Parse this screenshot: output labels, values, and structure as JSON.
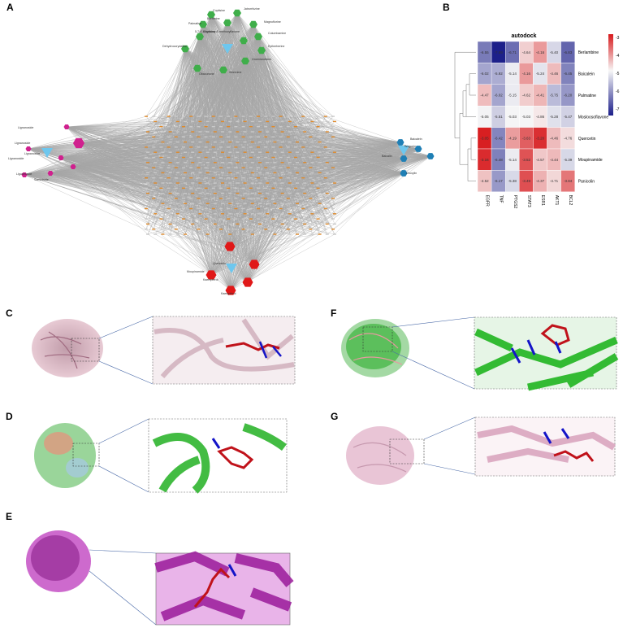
{
  "panels": {
    "A": "A",
    "B": "B",
    "C": "C",
    "D": "D",
    "E": "E",
    "F": "F",
    "G": "G"
  },
  "network": {
    "top_labels": [
      "Coptisine",
      "Jatrorrhizine",
      "Berberine",
      "Palmatine",
      "Magnoflorine",
      "Columbamine",
      "Epiberberine",
      "Groenlandicine",
      "Worenine",
      "Obacunone",
      "5,7,4'-trihydroxy-8-methoxyflavone",
      "Coptisine",
      "Dehydrocorydaline"
    ],
    "left_labels": [
      "Lignanoside",
      "Lignanoside",
      "Lignanoside",
      "Lignanoside",
      "Ligustroside",
      "Sammiside"
    ],
    "right_labels": [
      "Baicalein",
      "Wogonin",
      "Baicalin",
      "Oroxylin"
    ],
    "bottom_labels": [
      "Quercetin",
      "Kaempferol",
      "Kaempferol",
      "Moupinamide"
    ]
  },
  "chart_data": {
    "type": "heatmap",
    "title": "autodock",
    "columns": [
      "EGFR",
      "TNF",
      "PTGS2",
      "STAT3",
      "ESR1",
      "AKT1",
      "BCL2"
    ],
    "rows": [
      "Berlambine",
      "Baicalein",
      "Palmatine",
      "Mosloosoflavone",
      "Quercetin",
      "Moupinamide",
      "Panicolin"
    ],
    "values": [
      [
        -6.55,
        -7.69,
        -6.71,
        -4.64,
        -4.16,
        -5.4,
        -6.83
      ],
      [
        -6.02,
        -5.92,
        -5.14,
        -4.16,
        -5.24,
        -4.46,
        -6.45
      ],
      [
        -4.47,
        -6.02,
        -5.15,
        -4.62,
        -4.41,
        -5.75,
        -6.2
      ],
      [
        -5.05,
        -5.51,
        -5.03,
        -5.03,
        -4.86,
        -5.28,
        -5.47
      ],
      [
        -3.05,
        -6.42,
        -4.19,
        -3.63,
        -3.2,
        -4.46,
        -4.76
      ],
      [
        -3.16,
        -6.48,
        -5.14,
        -3.52,
        -4.57,
        -4.44,
        -5.39
      ],
      [
        -4.52,
        -6.17,
        -5.38,
        -3.49,
        -4.37,
        -4.71,
        -3.84
      ]
    ],
    "colorbar_ticks": [
      "-3",
      "-4",
      "-5",
      "-6",
      "-7"
    ],
    "colors": {
      "high": "#d7191c",
      "mid": "#f7f7f7",
      "low": "#1c1f8a"
    }
  }
}
